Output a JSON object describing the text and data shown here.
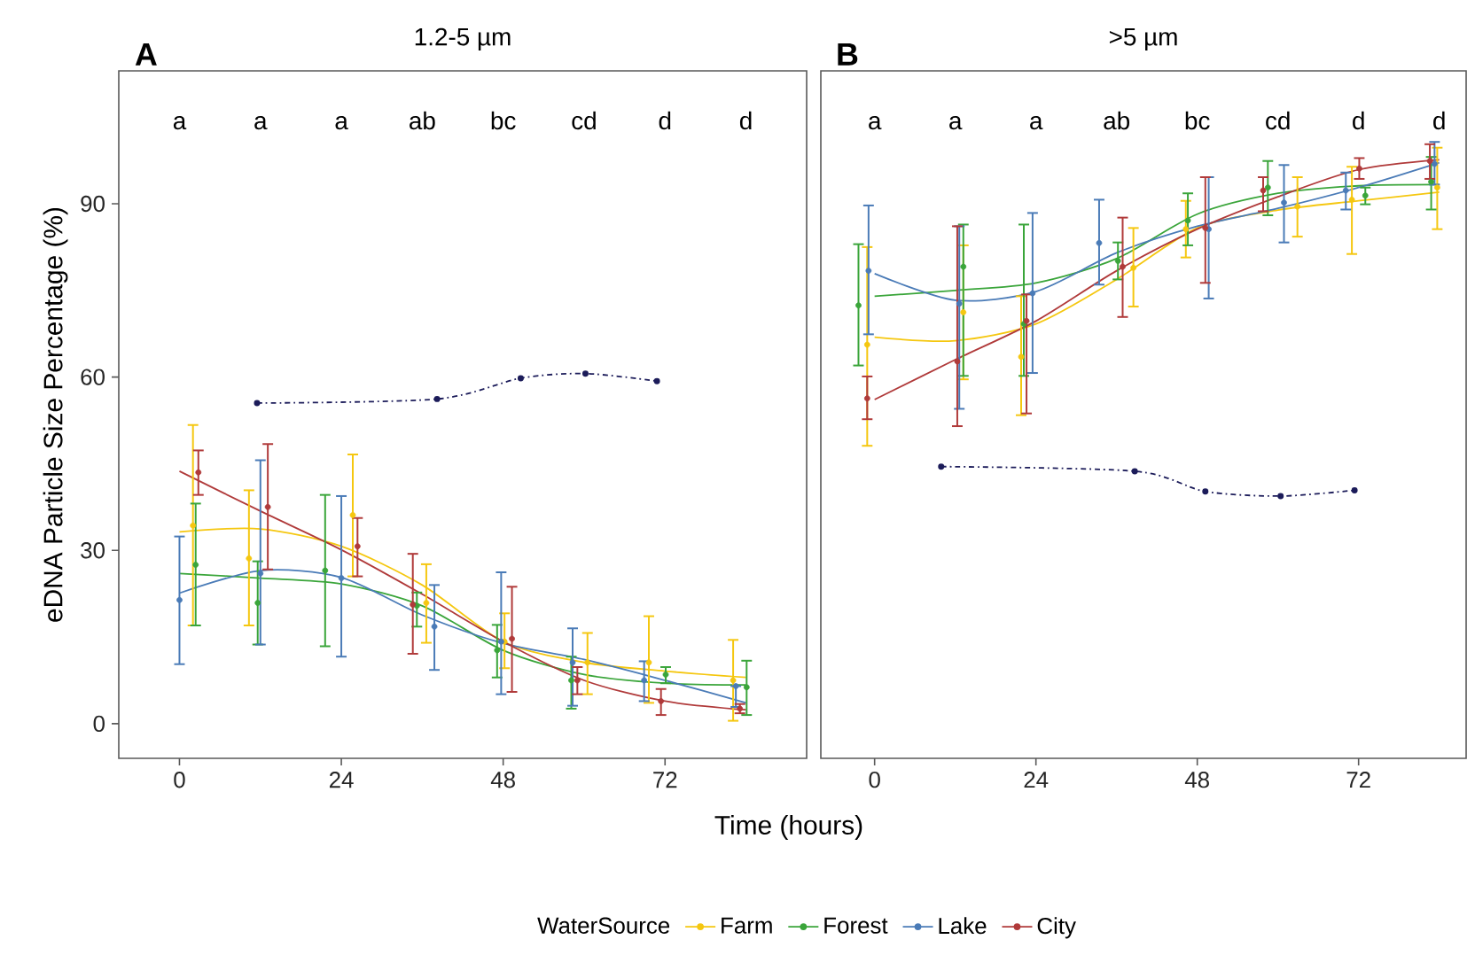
{
  "chart_data": [
    {
      "type": "scatter",
      "title": "A",
      "subtitle": "1.2-5 µm",
      "xlabel": "Time (hours)",
      "ylabel": "eDNA Particle Size Percentage (%)",
      "legend_title": "WaterSource",
      "legend": "bottom",
      "marker": "circle",
      "xlim": [
        -9,
        93
      ],
      "ylim": [
        -6,
        113
      ],
      "xticks": [
        0,
        24,
        48,
        72
      ],
      "yticks": [
        0,
        30,
        60,
        90
      ],
      "annotations": [
        "a",
        "a",
        "a",
        "ab",
        "bc",
        "cd",
        "d",
        "d"
      ],
      "series": [
        {
          "type": "line",
          "color": "#1c1c5a",
          "line_style": "dashdot",
          "x": [
            11.5,
            38.2,
            50.6,
            60.2,
            70.8
          ],
          "values": [
            55.5,
            56.2,
            59.8,
            60.6,
            59.3
          ]
        },
        {
          "type": "line",
          "color": "#f5c710",
          "marker": "none",
          "x": [
            0,
            12,
            24,
            36,
            48,
            60,
            72,
            84
          ],
          "values": [
            33.2,
            33.7,
            30.7,
            24.0,
            14.2,
            10.6,
            9.1,
            8.0
          ]
        },
        {
          "type": "line",
          "color": "#3aa53a",
          "marker": "none",
          "x": [
            0,
            12,
            24,
            36,
            48,
            60,
            72,
            84
          ],
          "values": [
            26.0,
            25.2,
            24.2,
            20.4,
            12.7,
            8.5,
            7.0,
            6.7
          ]
        },
        {
          "type": "line",
          "color": "#4a7bb7",
          "marker": "none",
          "x": [
            0,
            12,
            24,
            36,
            48,
            60,
            72,
            84
          ],
          "values": [
            22.6,
            26.5,
            25.3,
            18.8,
            13.9,
            11.1,
            7.5,
            3.6
          ]
        },
        {
          "type": "line",
          "color": "#b03a3a",
          "marker": "none",
          "x": [
            0,
            12,
            24,
            36,
            48,
            60,
            72,
            84
          ],
          "values": [
            43.7,
            36.8,
            30.1,
            22.4,
            14.2,
            7.5,
            3.9,
            2.4
          ]
        },
        {
          "name": "Farm",
          "color": "#f5c710",
          "x": [
            2.0,
            10.3,
            25.7,
            36.6,
            48.2,
            60.5,
            69.6,
            82.1
          ],
          "values": [
            34.3,
            28.6,
            36.1,
            20.9,
            14.2,
            10.6,
            10.6,
            7.5
          ],
          "errors": [
            [
              17.0,
              51.7
            ],
            [
              17.0,
              40.4
            ],
            [
              25.5,
              46.6
            ],
            [
              14.0,
              27.6
            ],
            [
              9.6,
              19.1
            ],
            [
              5.1,
              15.7
            ],
            [
              3.6,
              18.6
            ],
            [
              0.5,
              14.5
            ]
          ]
        },
        {
          "name": "Forest",
          "color": "#3aa53a",
          "x": [
            2.4,
            11.6,
            21.6,
            35.2,
            47.1,
            58.1,
            72.1,
            84.1
          ],
          "values": [
            27.5,
            20.9,
            26.5,
            20.4,
            12.7,
            7.5,
            8.5,
            6.3
          ],
          "errors": [
            [
              17.0,
              38.1
            ],
            [
              13.7,
              28.1
            ],
            [
              13.4,
              39.6
            ],
            [
              16.8,
              22.7
            ],
            [
              8.0,
              17.1
            ],
            [
              2.6,
              11.6
            ],
            [
              7.0,
              9.8
            ],
            [
              1.5,
              10.9
            ]
          ]
        },
        {
          "name": "Lake",
          "color": "#4a7bb7",
          "x": [
            0,
            12.0,
            24,
            37.8,
            47.7,
            58.3,
            68.9,
            82.5
          ],
          "values": [
            21.4,
            26.0,
            25.2,
            16.8,
            14.2,
            10.6,
            7.5,
            6.5
          ],
          "errors": [
            [
              10.3,
              32.4
            ],
            [
              13.7,
              45.6
            ],
            [
              11.6,
              39.4
            ],
            [
              9.3,
              24.0
            ],
            [
              5.1,
              26.2
            ],
            [
              3.1,
              16.5
            ],
            [
              3.9,
              10.8
            ],
            [
              2.9,
              6.5
            ]
          ]
        },
        {
          "name": "City",
          "color": "#b03a3a",
          "x": [
            2.8,
            13.1,
            26.4,
            34.6,
            49.3,
            59.0,
            71.4,
            83.1
          ],
          "values": [
            43.5,
            37.5,
            30.7,
            20.6,
            14.7,
            7.5,
            3.9,
            2.6
          ],
          "errors": [
            [
              39.6,
              47.3
            ],
            [
              26.7,
              48.4
            ],
            [
              25.5,
              35.6
            ],
            [
              12.1,
              29.4
            ],
            [
              5.5,
              23.7
            ],
            [
              5.1,
              9.8
            ],
            [
              1.5,
              6.0
            ],
            [
              1.8,
              3.4
            ]
          ]
        }
      ]
    },
    {
      "type": "scatter",
      "title": "B",
      "subtitle": ">5 µm",
      "marker": "circle",
      "tick_labels": "x",
      "xlim": [
        -8,
        88
      ],
      "ylim": [
        -6,
        113
      ],
      "xticks": [
        0,
        24,
        48,
        72
      ],
      "annotations": [
        "a",
        "a",
        "a",
        "ab",
        "bc",
        "cd",
        "d",
        "d"
      ],
      "series": [
        {
          "type": "line",
          "color": "#1c1c5a",
          "line_style": "dashdot",
          "x": [
            9.9,
            38.7,
            49.2,
            60.4,
            71.4
          ],
          "values": [
            44.5,
            43.7,
            40.2,
            39.4,
            40.4
          ]
        },
        {
          "type": "line",
          "color": "#f5c710",
          "marker": "none",
          "x": [
            0,
            12,
            24,
            36,
            48,
            60,
            72,
            84
          ],
          "values": [
            66.9,
            66.3,
            69.2,
            76.9,
            85.8,
            88.9,
            90.5,
            92.0
          ]
        },
        {
          "type": "line",
          "color": "#3aa53a",
          "marker": "none",
          "x": [
            0,
            12,
            24,
            36,
            48,
            60,
            72,
            84
          ],
          "values": [
            74.0,
            75.0,
            76.3,
            80.5,
            88.2,
            91.8,
            93.1,
            93.3
          ]
        },
        {
          "type": "line",
          "color": "#4a7bb7",
          "marker": "none",
          "x": [
            0,
            12,
            24,
            36,
            48,
            60,
            72,
            84
          ],
          "values": [
            77.9,
            73.3,
            74.8,
            81.5,
            86.1,
            89.2,
            92.8,
            97.1
          ]
        },
        {
          "type": "line",
          "color": "#b03a3a",
          "marker": "none",
          "x": [
            0,
            12,
            24,
            36,
            48,
            60,
            72,
            84
          ],
          "values": [
            56.1,
            63.0,
            69.7,
            78.4,
            85.6,
            91.2,
            95.9,
            97.6
          ]
        },
        {
          "color": "#f5c710",
          "x": [
            -1.1,
            13.2,
            21.8,
            38.5,
            46.3,
            62.9,
            71.0,
            83.7
          ],
          "values": [
            65.6,
            71.2,
            63.5,
            78.9,
            85.6,
            89.5,
            90.7,
            92.8
          ],
          "errors": [
            [
              48.1,
              82.5
            ],
            [
              59.6,
              82.8
            ],
            [
              53.4,
              74.0
            ],
            [
              72.2,
              85.8
            ],
            [
              80.7,
              90.5
            ],
            [
              84.3,
              94.6
            ],
            [
              81.3,
              96.4
            ],
            [
              85.6,
              99.7
            ]
          ]
        },
        {
          "color": "#3aa53a",
          "x": [
            -2.4,
            13.2,
            22.2,
            36.2,
            46.6,
            58.5,
            73.0,
            82.8
          ],
          "values": [
            72.4,
            79.1,
            69.2,
            80.1,
            87.1,
            92.8,
            91.4,
            93.8
          ],
          "errors": [
            [
              62.0,
              83.0
            ],
            [
              60.2,
              86.4
            ],
            [
              60.2,
              86.4
            ],
            [
              76.9,
              83.3
            ],
            [
              82.8,
              91.8
            ],
            [
              88.0,
              97.4
            ],
            [
              89.9,
              92.8
            ],
            [
              89.0,
              98.1
            ]
          ]
        },
        {
          "color": "#4a7bb7",
          "x": [
            -0.9,
            12.6,
            23.5,
            33.4,
            49.7,
            60.9,
            70.1,
            83.3
          ],
          "values": [
            78.4,
            72.7,
            74.5,
            83.2,
            85.6,
            90.2,
            92.3,
            96.9
          ],
          "errors": [
            [
              67.4,
              89.7
            ],
            [
              54.5,
              86.1
            ],
            [
              60.7,
              88.4
            ],
            [
              76.0,
              90.7
            ],
            [
              73.6,
              94.6
            ],
            [
              83.3,
              96.7
            ],
            [
              89.0,
              95.4
            ],
            [
              93.3,
              100.7
            ]
          ]
        },
        {
          "color": "#b03a3a",
          "x": [
            -1.1,
            12.3,
            22.6,
            36.9,
            49.2,
            57.8,
            72.1,
            82.6
          ],
          "values": [
            56.3,
            62.7,
            69.7,
            79.1,
            85.8,
            92.3,
            96.1,
            97.4
          ],
          "errors": [
            [
              52.7,
              60.1
            ],
            [
              51.5,
              86.1
            ],
            [
              53.7,
              74.3
            ],
            [
              70.4,
              87.6
            ],
            [
              76.3,
              94.6
            ],
            [
              88.7,
              94.6
            ],
            [
              94.3,
              97.9
            ],
            [
              94.3,
              100.3
            ]
          ]
        }
      ]
    }
  ]
}
